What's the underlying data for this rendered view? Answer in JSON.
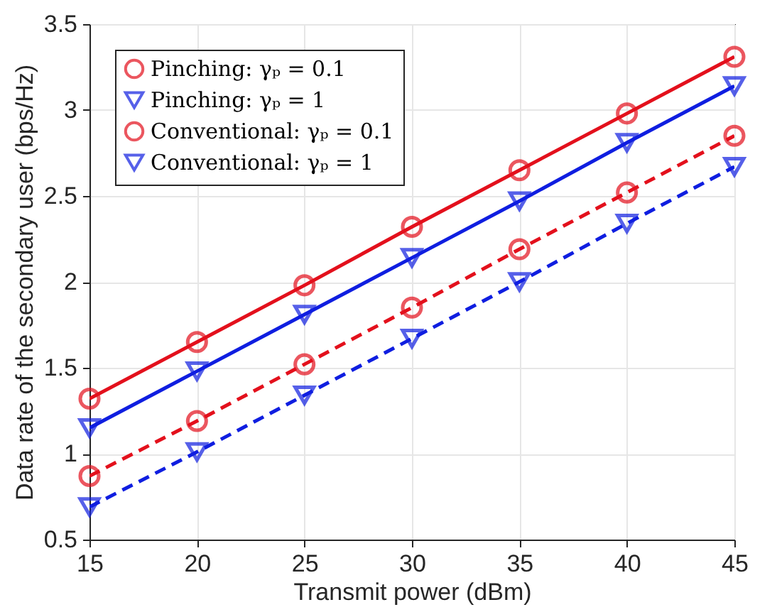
{
  "chart_data": {
    "type": "line",
    "xlabel": "Transmit power (dBm)",
    "ylabel": "Data rate of the secondary user (bps/Hz)",
    "x": [
      15,
      20,
      25,
      30,
      35,
      40,
      45
    ],
    "series": [
      {
        "name": "Pinching: γₚ = 0.1",
        "color": "#e3101c",
        "marker": "circle",
        "line_style": "solid",
        "values": [
          1.32,
          1.65,
          1.98,
          2.32,
          2.65,
          2.98,
          3.31
        ]
      },
      {
        "name": "Pinching: γₚ = 1",
        "color": "#0f1ee0",
        "marker": "triangle",
        "line_style": "solid",
        "values": [
          1.15,
          1.48,
          1.81,
          2.14,
          2.47,
          2.81,
          3.14
        ]
      },
      {
        "name": "Conventional: γₚ = 0.1",
        "color": "#e3101c",
        "marker": "circle",
        "line_style": "dashed",
        "values": [
          0.87,
          1.19,
          1.52,
          1.85,
          2.19,
          2.52,
          2.85
        ]
      },
      {
        "name": "Conventional: γₚ = 1",
        "color": "#0f1ee0",
        "marker": "triangle",
        "line_style": "dashed",
        "values": [
          0.69,
          1.01,
          1.34,
          1.67,
          2.0,
          2.34,
          2.67
        ]
      }
    ],
    "xlim": [
      15,
      45
    ],
    "xticks": [
      15,
      20,
      25,
      30,
      35,
      40,
      45
    ],
    "ylim": [
      0.5,
      3.5
    ],
    "yticks": [
      0.5,
      {
        "value": 1,
        "label": "1"
      },
      1.5,
      {
        "value": 2,
        "label": "2"
      },
      2.5,
      {
        "value": 3,
        "label": "3"
      },
      3.5
    ],
    "grid": true,
    "legend": "top left"
  }
}
